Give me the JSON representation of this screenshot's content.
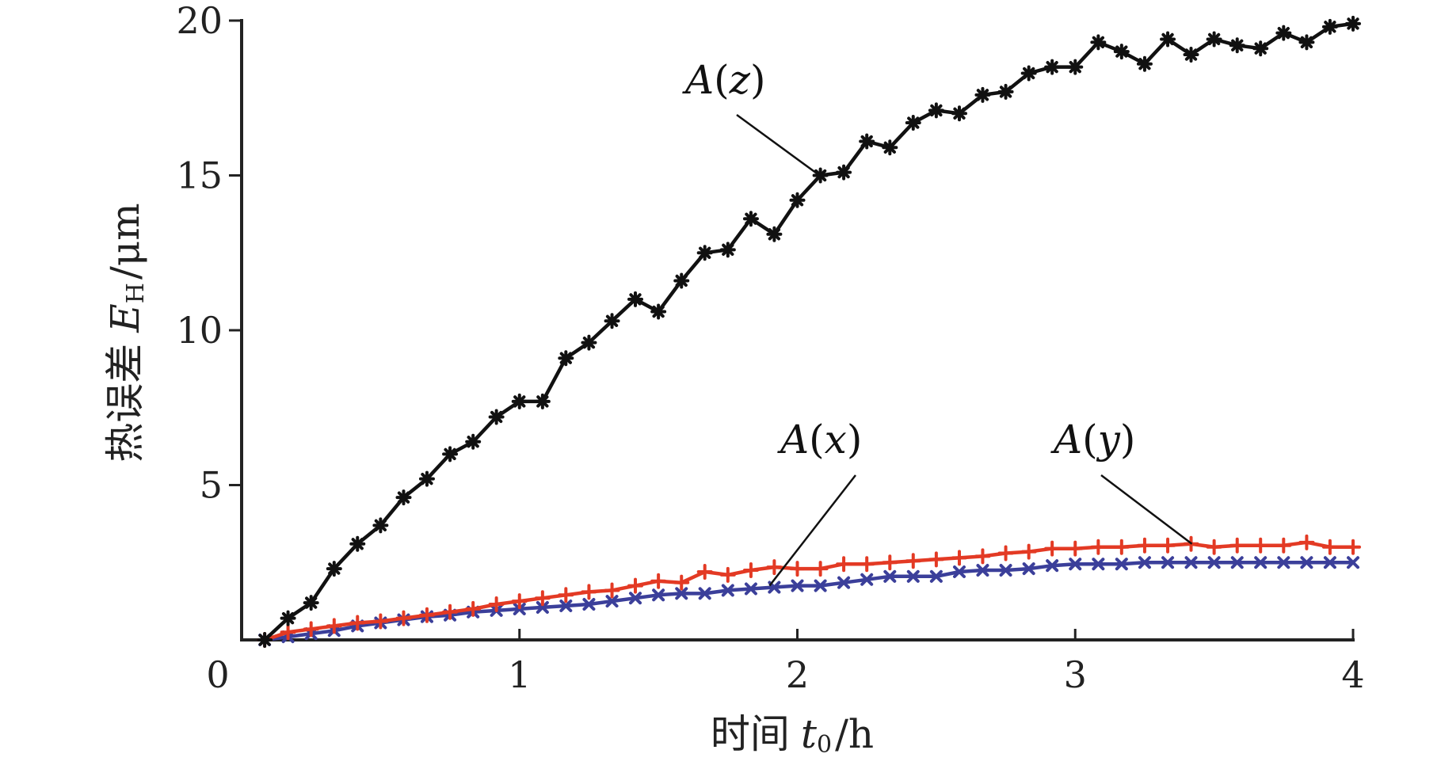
{
  "chart_data": {
    "type": "line",
    "title": "",
    "xlabel": {
      "prefix": "时间",
      "symbol": "t",
      "subscript": "0",
      "unit": "/h"
    },
    "ylabel": {
      "prefix": "热误差",
      "symbol": "E",
      "subscript": "H",
      "unit": "/μm"
    },
    "xlim": [
      0,
      4
    ],
    "ylim": [
      0,
      20
    ],
    "x_ticks": [
      {
        "value": 0,
        "label": "0"
      },
      {
        "value": 1,
        "label": "1"
      },
      {
        "value": 2,
        "label": "2"
      },
      {
        "value": 3,
        "label": "3"
      },
      {
        "value": 4,
        "label": "4"
      }
    ],
    "y_ticks": [
      {
        "value": 5,
        "label": "5"
      },
      {
        "value": 10,
        "label": "10"
      },
      {
        "value": 15,
        "label": "15"
      },
      {
        "value": 20,
        "label": "20"
      }
    ],
    "grid": false,
    "legend": "none",
    "x": [
      0.083,
      0.167,
      0.25,
      0.333,
      0.417,
      0.5,
      0.583,
      0.667,
      0.75,
      0.833,
      0.917,
      1.0,
      1.083,
      1.167,
      1.25,
      1.333,
      1.417,
      1.5,
      1.583,
      1.667,
      1.75,
      1.833,
      1.917,
      2.0,
      2.083,
      2.167,
      2.25,
      2.333,
      2.417,
      2.5,
      2.583,
      2.667,
      2.75,
      2.833,
      2.917,
      3.0,
      3.083,
      3.167,
      3.25,
      3.333,
      3.417,
      3.5,
      3.583,
      3.667,
      3.75,
      3.833,
      3.917,
      4.0
    ],
    "series": [
      {
        "name": "A(z)",
        "color": "#111111",
        "marker": "asterisk",
        "values": [
          0.0,
          0.7,
          1.2,
          2.3,
          3.1,
          3.7,
          4.6,
          5.2,
          6.0,
          6.4,
          7.2,
          7.7,
          7.7,
          9.1,
          9.6,
          10.3,
          11.0,
          10.6,
          11.6,
          12.5,
          12.6,
          13.6,
          13.1,
          14.2,
          15.0,
          15.1,
          16.1,
          15.9,
          16.7,
          17.1,
          17.0,
          17.6,
          17.7,
          18.3,
          18.5,
          18.5,
          19.3,
          19.0,
          18.6,
          19.4,
          18.9,
          19.4,
          19.2,
          19.1,
          19.6,
          19.3,
          19.8,
          19.9
        ]
      },
      {
        "name": "A(y)",
        "color": "#e33a24",
        "marker": "plus",
        "values": [
          0.0,
          0.25,
          0.35,
          0.45,
          0.55,
          0.6,
          0.7,
          0.8,
          0.9,
          1.0,
          1.15,
          1.25,
          1.35,
          1.45,
          1.55,
          1.6,
          1.75,
          1.9,
          1.85,
          2.2,
          2.1,
          2.25,
          2.35,
          2.3,
          2.3,
          2.45,
          2.45,
          2.5,
          2.55,
          2.6,
          2.65,
          2.7,
          2.8,
          2.85,
          2.95,
          2.95,
          3.0,
          3.0,
          3.05,
          3.05,
          3.1,
          3.0,
          3.05,
          3.05,
          3.05,
          3.15,
          3.0,
          3.0
        ]
      },
      {
        "name": "A(x)",
        "color": "#3b3f9a",
        "marker": "x",
        "values": [
          0.0,
          0.1,
          0.2,
          0.3,
          0.45,
          0.55,
          0.65,
          0.75,
          0.8,
          0.9,
          0.95,
          1.0,
          1.05,
          1.1,
          1.15,
          1.25,
          1.35,
          1.45,
          1.5,
          1.5,
          1.6,
          1.65,
          1.7,
          1.75,
          1.75,
          1.85,
          1.95,
          2.05,
          2.05,
          2.05,
          2.2,
          2.25,
          2.25,
          2.3,
          2.4,
          2.45,
          2.45,
          2.45,
          2.5,
          2.5,
          2.5,
          2.5,
          2.5,
          2.5,
          2.5,
          2.5,
          2.5,
          2.5
        ]
      }
    ],
    "annotations": [
      {
        "prefix": "A",
        "open": "(",
        "var": "z",
        "close": ")",
        "series": "A(z)",
        "x": 2.08,
        "y": 15.0
      },
      {
        "prefix": "A",
        "open": "(",
        "var": "x",
        "close": ")",
        "series": "A(x)",
        "x": 1.9,
        "y": 1.75
      },
      {
        "prefix": "A",
        "open": "(",
        "var": "y",
        "close": ")",
        "series": "A(y)",
        "x": 3.42,
        "y": 3.1
      }
    ]
  }
}
